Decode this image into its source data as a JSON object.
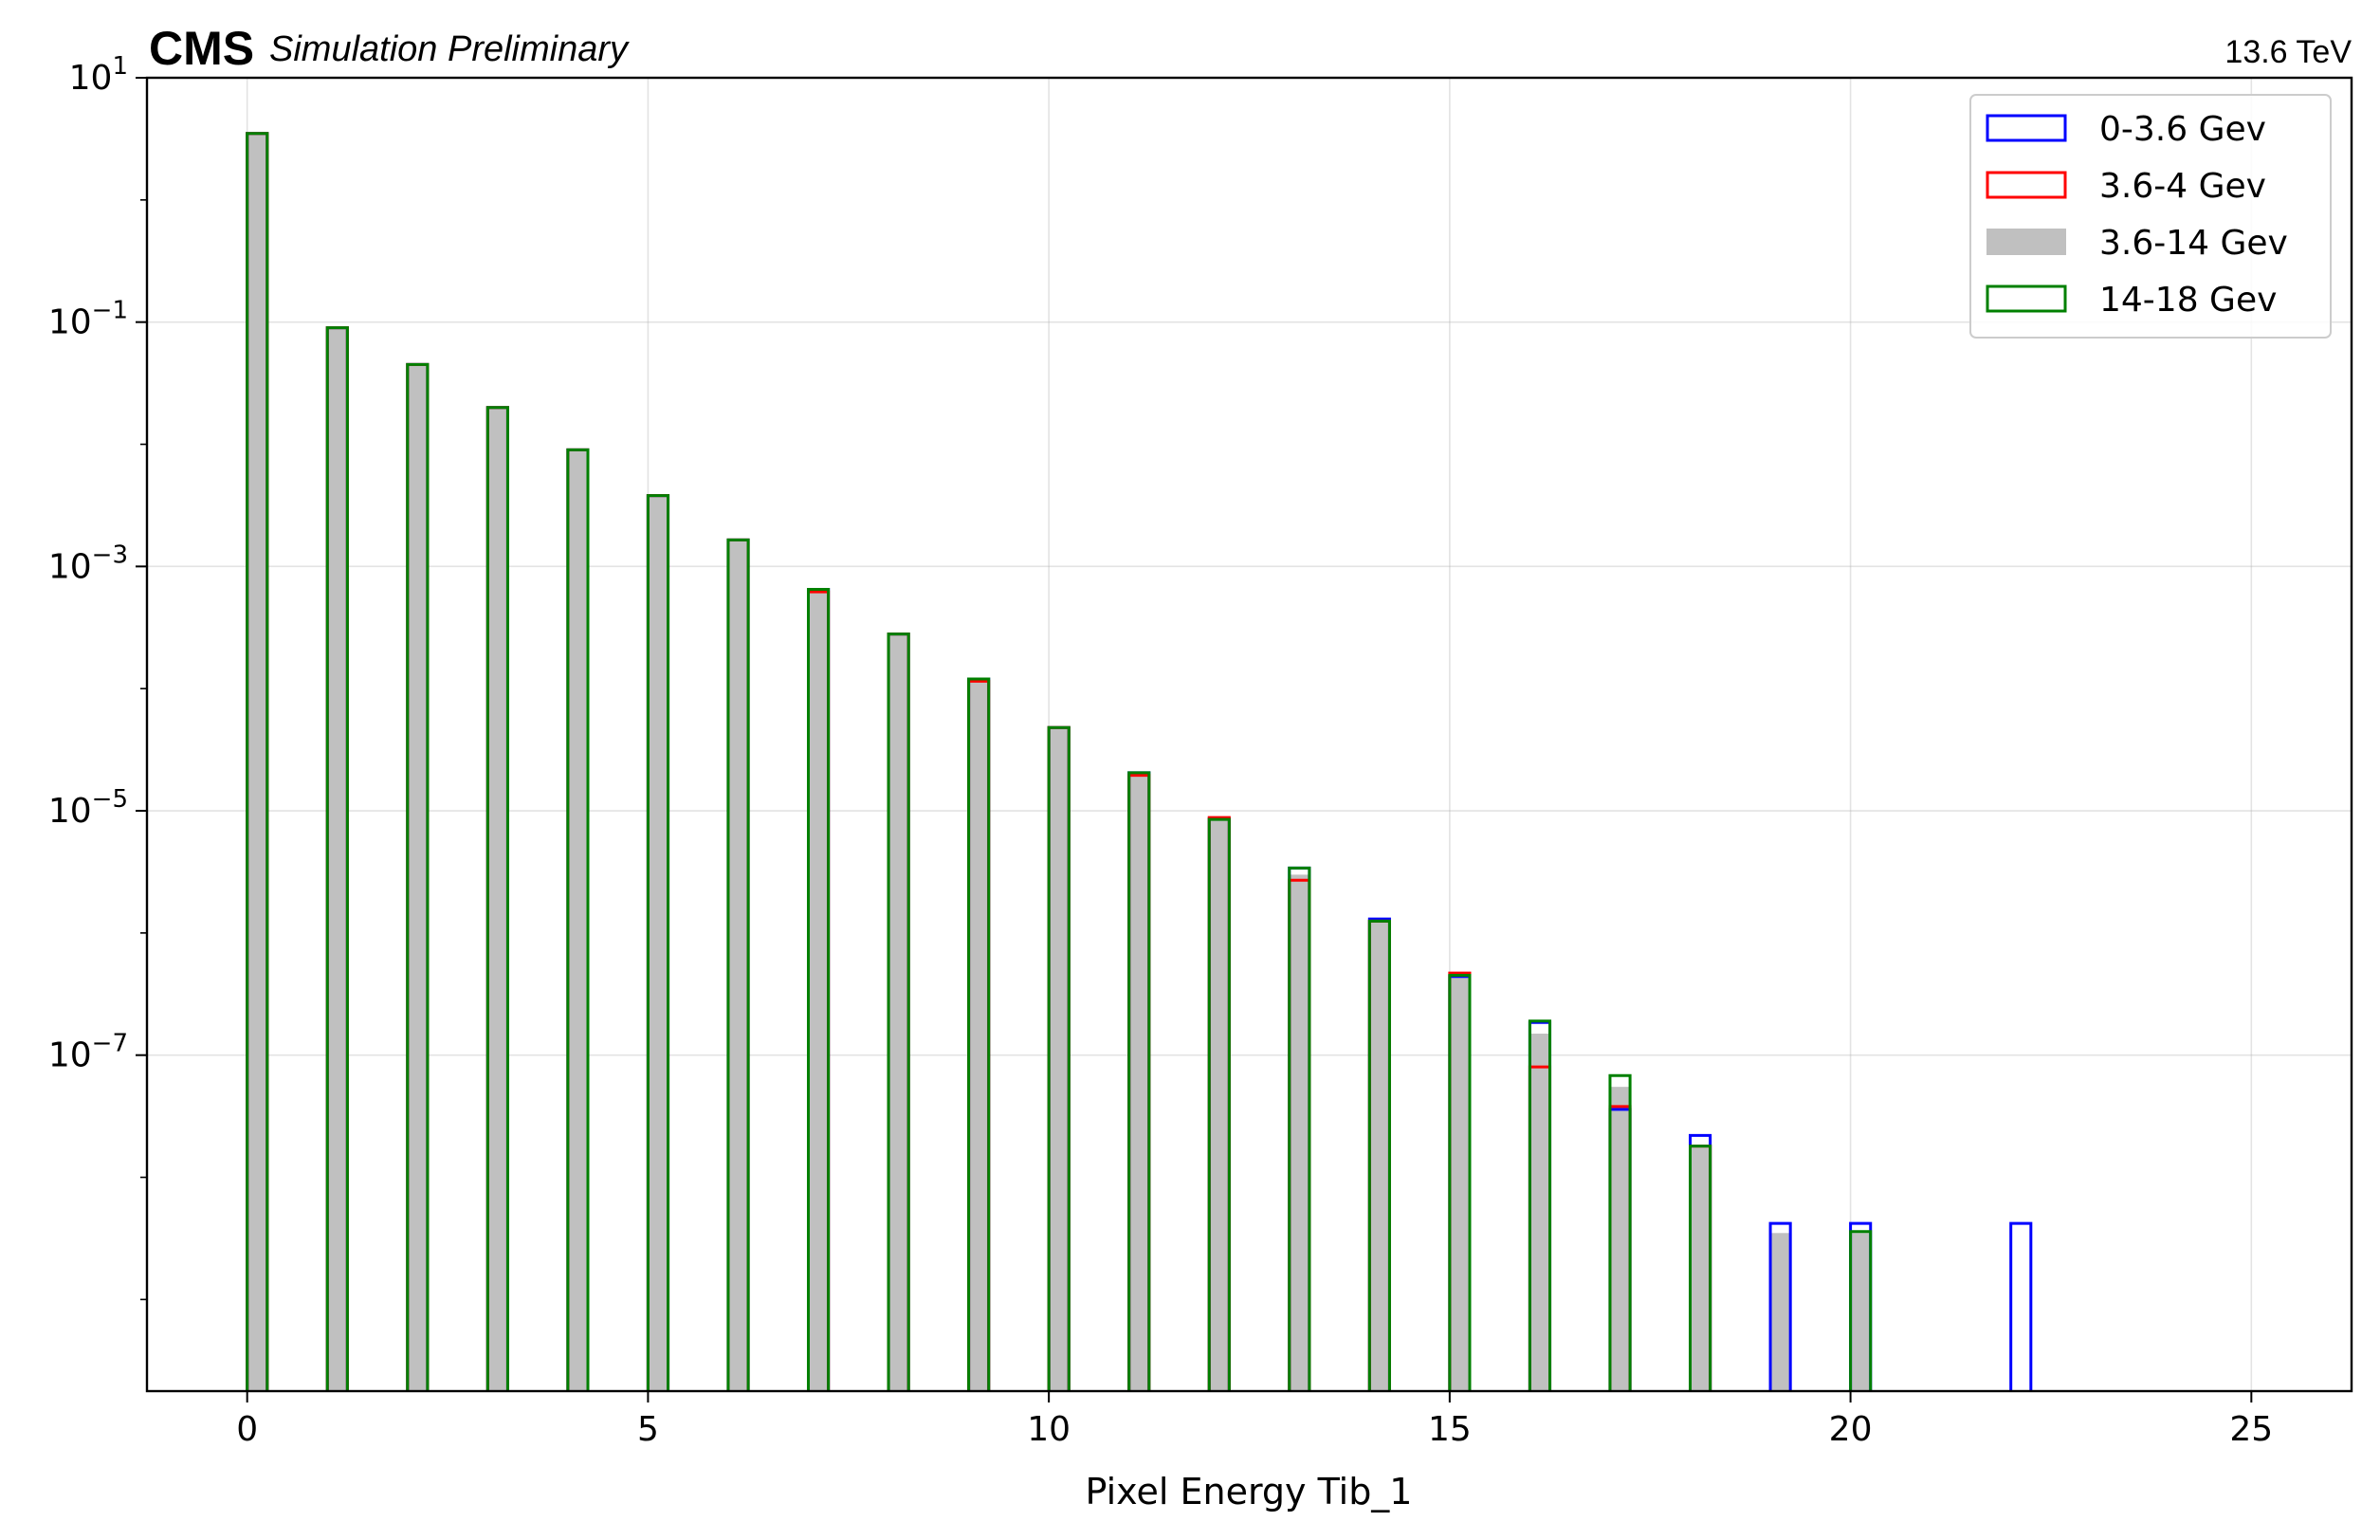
{
  "header": {
    "experiment": "CMS",
    "status": "Simulation Preliminary",
    "energy": "13.6 TeV"
  },
  "chart_data": {
    "type": "bar",
    "xlabel": "Pixel Energy Tib_1",
    "ylabel": "",
    "xlim": [
      -1.25,
      26.25
    ],
    "ylim_log10": [
      -9.75,
      1
    ],
    "yscale": "log",
    "grid": true,
    "legend_position": "top-right",
    "x_ticks": [
      0,
      5,
      10,
      15,
      20,
      25
    ],
    "y_ticks": [
      {
        "exp": 1,
        "base": "10",
        "label": "1"
      },
      {
        "exp": -1,
        "base": "10",
        "label": "−1"
      },
      {
        "exp": -3,
        "base": "10",
        "label": "−3"
      },
      {
        "exp": -5,
        "base": "10",
        "label": "−5"
      },
      {
        "exp": -7,
        "base": "10",
        "label": "−7"
      }
    ],
    "bin_width": 0.25,
    "series": [
      {
        "name": "0-3.6 Gev",
        "color": "#0000ff",
        "style": "step",
        "points": [
          [
            0,
            3.5
          ],
          [
            1,
            0.09
          ],
          [
            2,
            0.045
          ],
          [
            3,
            0.02
          ],
          [
            4,
            0.009
          ],
          [
            5,
            0.0038
          ],
          [
            6,
            0.00165
          ],
          [
            7,
            0.00065
          ],
          [
            8,
            0.00028
          ],
          [
            9,
            0.00012
          ],
          [
            10,
            4.8e-05
          ],
          [
            11,
            2.05e-05
          ],
          [
            12,
            8.6e-06
          ],
          [
            13,
            3.4e-06
          ],
          [
            14,
            1.3e-06
          ],
          [
            15,
            4.4e-07
          ],
          [
            16,
            1.85e-07
          ],
          [
            17,
            3.6e-08
          ],
          [
            18,
            2.2e-08
          ],
          [
            19,
            4.2e-09
          ],
          [
            20,
            4.2e-09
          ],
          [
            22,
            4.2e-09
          ]
        ]
      },
      {
        "name": "3.6-4 Gev",
        "color": "#ff0000",
        "style": "step",
        "points": [
          [
            0,
            3.5
          ],
          [
            1,
            0.09
          ],
          [
            2,
            0.045
          ],
          [
            3,
            0.02
          ],
          [
            4,
            0.009
          ],
          [
            5,
            0.0038
          ],
          [
            6,
            0.00165
          ],
          [
            7,
            0.00062
          ],
          [
            8,
            0.00028
          ],
          [
            9,
            0.000115
          ],
          [
            10,
            4.8e-05
          ],
          [
            11,
            1.95e-05
          ],
          [
            12,
            8.8e-06
          ],
          [
            13,
            2.7e-06
          ],
          [
            14,
            1.25e-06
          ],
          [
            15,
            4.7e-07
          ],
          [
            16,
            8e-08
          ],
          [
            17,
            3.8e-08
          ],
          [
            18,
            1.8e-08
          ]
        ]
      },
      {
        "name": "3.6-14 Gev",
        "color": "#c0c0c0",
        "style": "filled",
        "points": [
          [
            0,
            3.5
          ],
          [
            1,
            0.09
          ],
          [
            2,
            0.045
          ],
          [
            3,
            0.02
          ],
          [
            4,
            0.009
          ],
          [
            5,
            0.0038
          ],
          [
            6,
            0.00165
          ],
          [
            7,
            0.00063
          ],
          [
            8,
            0.00028
          ],
          [
            9,
            0.000115
          ],
          [
            10,
            4.8e-05
          ],
          [
            11,
            2e-05
          ],
          [
            12,
            8.5e-06
          ],
          [
            13,
            3e-06
          ],
          [
            14,
            1.25e-06
          ],
          [
            15,
            4.5e-07
          ],
          [
            16,
            1.5e-07
          ],
          [
            17,
            5.5e-08
          ],
          [
            18,
            1.8e-08
          ],
          [
            19,
            3.5e-09
          ],
          [
            20,
            3.5e-09
          ]
        ]
      },
      {
        "name": "14-18 Gev",
        "color": "#008000",
        "style": "step",
        "points": [
          [
            0,
            3.5
          ],
          [
            1,
            0.09
          ],
          [
            2,
            0.045
          ],
          [
            3,
            0.02
          ],
          [
            4,
            0.009
          ],
          [
            5,
            0.0038
          ],
          [
            6,
            0.00165
          ],
          [
            7,
            0.00065
          ],
          [
            8,
            0.00028
          ],
          [
            9,
            0.00012
          ],
          [
            10,
            4.8e-05
          ],
          [
            11,
            2.05e-05
          ],
          [
            12,
            8.5e-06
          ],
          [
            13,
            3.4e-06
          ],
          [
            14,
            1.25e-06
          ],
          [
            15,
            4.5e-07
          ],
          [
            16,
            1.9e-07
          ],
          [
            17,
            6.8e-08
          ],
          [
            18,
            1.8e-08
          ],
          [
            20,
            3.6e-09
          ]
        ]
      }
    ]
  }
}
